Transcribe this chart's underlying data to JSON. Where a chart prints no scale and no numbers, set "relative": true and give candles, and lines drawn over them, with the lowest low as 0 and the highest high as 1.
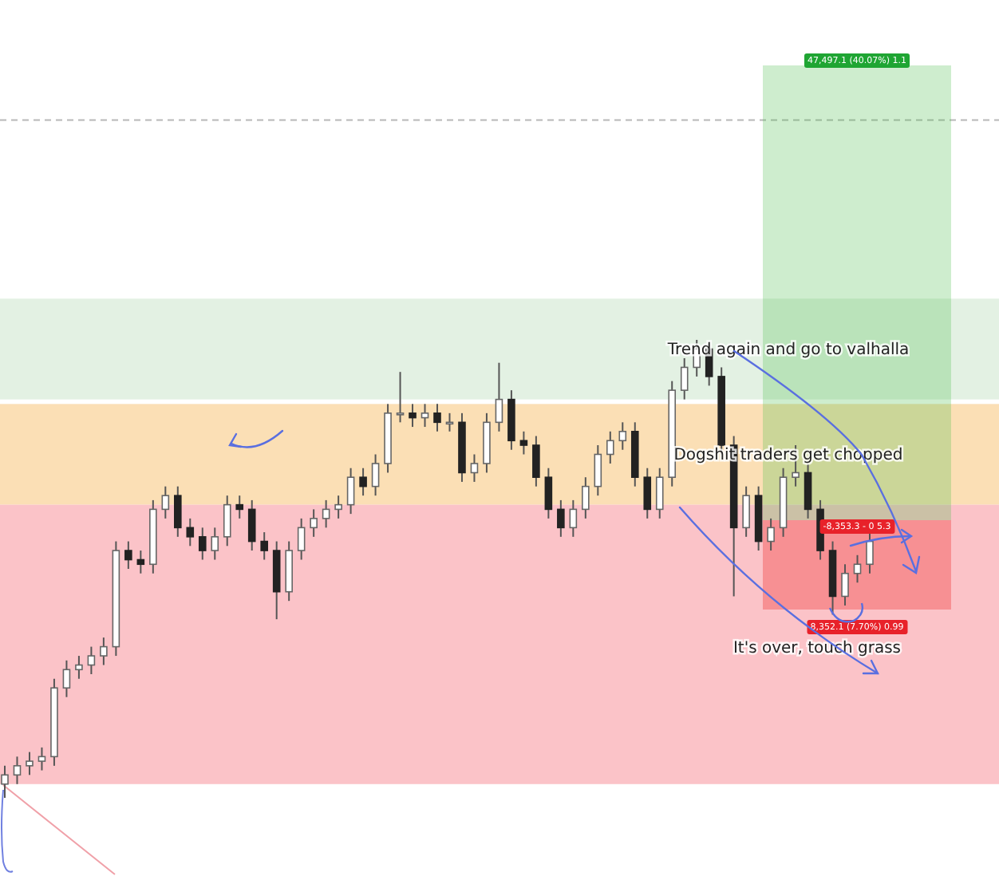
{
  "chart_data": {
    "type": "candlestick",
    "relative": true,
    "categories": [
      null,
      null,
      null,
      null,
      null,
      null,
      null,
      null,
      null,
      null,
      null,
      null,
      null,
      null,
      null,
      null,
      null,
      null,
      null,
      null,
      null,
      null,
      null,
      null,
      null,
      null,
      null,
      null,
      null,
      null,
      null,
      null,
      null,
      null,
      null,
      null,
      null,
      null,
      null,
      null,
      null,
      null,
      null,
      null,
      null,
      null,
      null,
      null,
      null,
      null,
      null,
      null,
      null,
      null,
      null,
      null,
      null,
      null,
      null,
      null,
      null,
      null,
      null,
      null,
      null,
      null,
      null,
      null,
      null,
      null,
      null
    ],
    "ohlc": [
      [
        0.03,
        0.07,
        0.0,
        0.05
      ],
      [
        0.05,
        0.09,
        0.03,
        0.07
      ],
      [
        0.07,
        0.1,
        0.05,
        0.08
      ],
      [
        0.08,
        0.11,
        0.06,
        0.09
      ],
      [
        0.09,
        0.26,
        0.07,
        0.24
      ],
      [
        0.24,
        0.3,
        0.22,
        0.28
      ],
      [
        0.28,
        0.31,
        0.26,
        0.29
      ],
      [
        0.29,
        0.33,
        0.27,
        0.31
      ],
      [
        0.31,
        0.35,
        0.29,
        0.33
      ],
      [
        0.33,
        0.56,
        0.31,
        0.54
      ],
      [
        0.54,
        0.56,
        0.5,
        0.52
      ],
      [
        0.52,
        0.54,
        0.49,
        0.51
      ],
      [
        0.51,
        0.65,
        0.49,
        0.63
      ],
      [
        0.63,
        0.68,
        0.61,
        0.66
      ],
      [
        0.66,
        0.68,
        0.57,
        0.59
      ],
      [
        0.59,
        0.61,
        0.55,
        0.57
      ],
      [
        0.57,
        0.59,
        0.52,
        0.54
      ],
      [
        0.54,
        0.59,
        0.52,
        0.57
      ],
      [
        0.57,
        0.66,
        0.55,
        0.64
      ],
      [
        0.64,
        0.66,
        0.61,
        0.63
      ],
      [
        0.63,
        0.65,
        0.54,
        0.56
      ],
      [
        0.56,
        0.58,
        0.52,
        0.54
      ],
      [
        0.54,
        0.56,
        0.39,
        0.45
      ],
      [
        0.45,
        0.56,
        0.43,
        0.54
      ],
      [
        0.54,
        0.61,
        0.52,
        0.59
      ],
      [
        0.59,
        0.63,
        0.57,
        0.61
      ],
      [
        0.61,
        0.65,
        0.59,
        0.63
      ],
      [
        0.63,
        0.66,
        0.61,
        0.64
      ],
      [
        0.64,
        0.72,
        0.62,
        0.7
      ],
      [
        0.7,
        0.72,
        0.66,
        0.68
      ],
      [
        0.68,
        0.75,
        0.66,
        0.73
      ],
      [
        0.73,
        0.86,
        0.71,
        0.84
      ],
      [
        0.84,
        0.93,
        0.82,
        0.84
      ],
      [
        0.84,
        0.86,
        0.81,
        0.83
      ],
      [
        0.83,
        0.86,
        0.81,
        0.84
      ],
      [
        0.84,
        0.86,
        0.8,
        0.82
      ],
      [
        0.82,
        0.84,
        0.8,
        0.82
      ],
      [
        0.82,
        0.84,
        0.69,
        0.71
      ],
      [
        0.71,
        0.75,
        0.69,
        0.73
      ],
      [
        0.73,
        0.84,
        0.71,
        0.82
      ],
      [
        0.82,
        0.95,
        0.8,
        0.87
      ],
      [
        0.87,
        0.89,
        0.76,
        0.78
      ],
      [
        0.78,
        0.8,
        0.75,
        0.77
      ],
      [
        0.77,
        0.79,
        0.68,
        0.7
      ],
      [
        0.7,
        0.72,
        0.61,
        0.63
      ],
      [
        0.63,
        0.65,
        0.57,
        0.59
      ],
      [
        0.59,
        0.65,
        0.57,
        0.63
      ],
      [
        0.63,
        0.7,
        0.61,
        0.68
      ],
      [
        0.68,
        0.77,
        0.66,
        0.75
      ],
      [
        0.75,
        0.8,
        0.73,
        0.78
      ],
      [
        0.78,
        0.82,
        0.76,
        0.8
      ],
      [
        0.8,
        0.82,
        0.68,
        0.7
      ],
      [
        0.7,
        0.72,
        0.61,
        0.63
      ],
      [
        0.63,
        0.72,
        0.61,
        0.7
      ],
      [
        0.7,
        0.91,
        0.68,
        0.89
      ],
      [
        0.89,
        0.96,
        0.87,
        0.94
      ],
      [
        0.94,
        1.0,
        0.92,
        0.98
      ],
      [
        0.98,
        0.99,
        0.9,
        0.92
      ],
      [
        0.92,
        0.94,
        0.75,
        0.77
      ],
      [
        0.77,
        0.79,
        0.44,
        0.59
      ],
      [
        0.59,
        0.68,
        0.57,
        0.66
      ],
      [
        0.66,
        0.68,
        0.54,
        0.56
      ],
      [
        0.56,
        0.61,
        0.54,
        0.59
      ],
      [
        0.59,
        0.72,
        0.57,
        0.7
      ],
      [
        0.7,
        0.77,
        0.68,
        0.71
      ],
      [
        0.71,
        0.73,
        0.61,
        0.63
      ],
      [
        0.63,
        0.65,
        0.52,
        0.54
      ],
      [
        0.54,
        0.56,
        0.4,
        0.44
      ],
      [
        0.44,
        0.51,
        0.42,
        0.49
      ],
      [
        0.49,
        0.53,
        0.47,
        0.51
      ],
      [
        0.51,
        0.58,
        0.49,
        0.56
      ]
    ],
    "bands": [
      {
        "axis": "y",
        "from": 0.87,
        "to": 1.09,
        "color": "#e3f1e3"
      },
      {
        "axis": "y",
        "from": 0.64,
        "to": 0.86,
        "color": "#fbdfb5"
      },
      {
        "axis": "y",
        "from": 0.03,
        "to": 0.64,
        "color": "#fbc3c8"
      }
    ],
    "ref_lines": [
      {
        "axis": "y",
        "value": 1.48,
        "color": "#b8b8b8",
        "line_style": "dashed"
      }
    ],
    "annotations": [
      "Trend again and go to valhalla",
      "Dogshit traders get chopped",
      "It's over, touch grass",
      "47,497.1 (40.07%) 1.1",
      "-8,353.3 - 0 5.3",
      "8,352.1 (7.70%) 0.99"
    ]
  }
}
